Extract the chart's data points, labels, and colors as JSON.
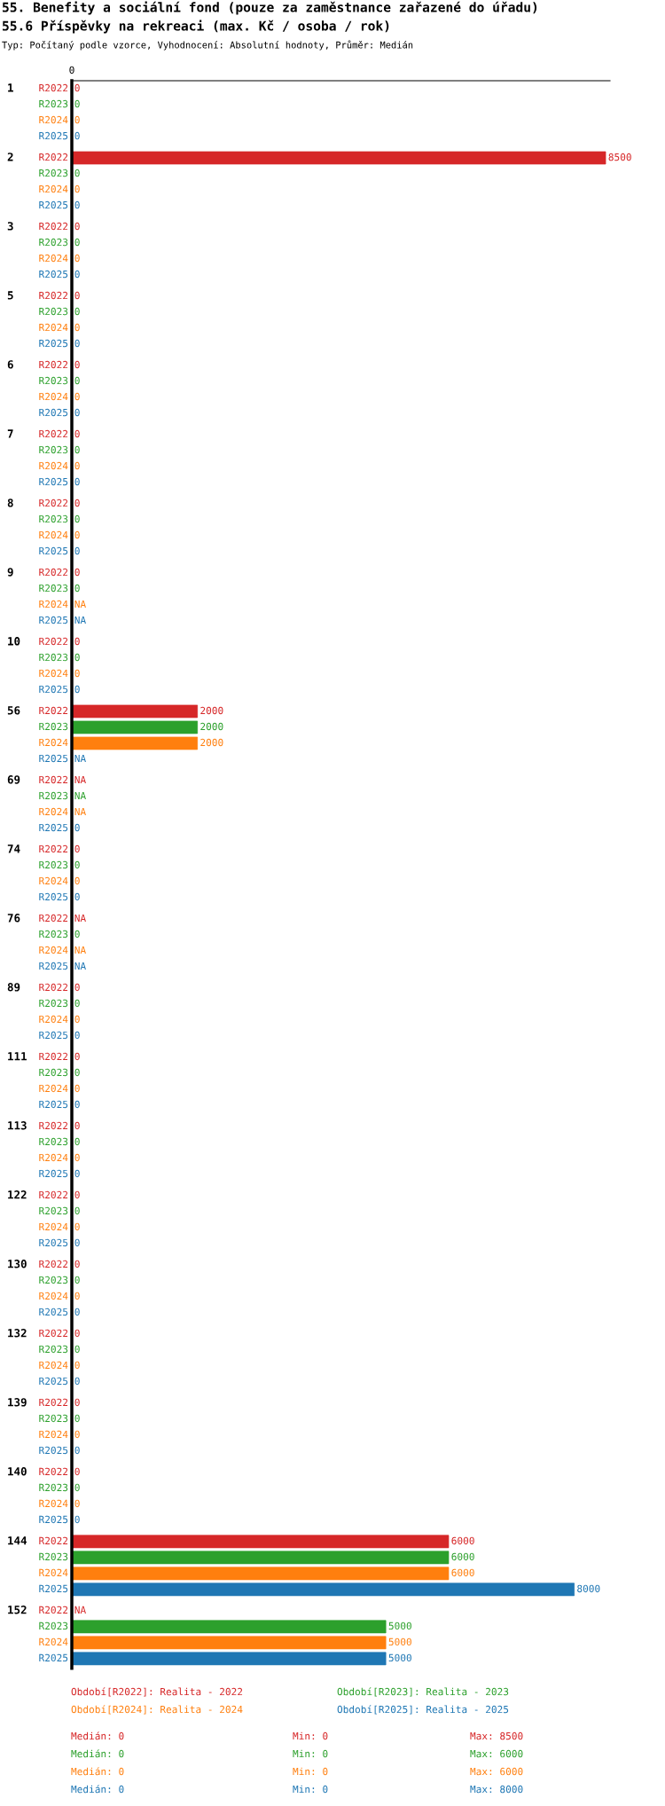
{
  "chart_data": {
    "type": "bar",
    "orientation": "horizontal",
    "title": "55. Benefity a sociální fond (pouze za zaměstnance zařazené do úřadu)",
    "subtitle": "55.6 Příspěvky na rekreaci (max. Kč / osoba / rok)",
    "categories": [
      "1",
      "2",
      "3",
      "5",
      "6",
      "7",
      "8",
      "9",
      "10",
      "56",
      "69",
      "74",
      "76",
      "89",
      "111",
      "113",
      "122",
      "130",
      "132",
      "139",
      "140",
      "144",
      "152"
    ],
    "series": [
      {
        "name": "R2022",
        "color": "#d62728",
        "values": [
          0,
          8500,
          0,
          0,
          0,
          0,
          0,
          0,
          0,
          2000,
          null,
          0,
          null,
          0,
          0,
          0,
          0,
          0,
          0,
          0,
          0,
          6000,
          null
        ],
        "value_labels": [
          "0",
          "8500",
          "0",
          "0",
          "0",
          "0",
          "0",
          "0",
          "0",
          "2000",
          "NA",
          "0",
          "NA",
          "0",
          "0",
          "0",
          "0",
          "0",
          "0",
          "0",
          "0",
          "6000",
          "NA"
        ]
      },
      {
        "name": "R2023",
        "color": "#2ca02c",
        "values": [
          0,
          0,
          0,
          0,
          0,
          0,
          0,
          0,
          0,
          2000,
          null,
          0,
          0,
          0,
          0,
          0,
          0,
          0,
          0,
          0,
          0,
          6000,
          5000
        ],
        "value_labels": [
          "0",
          "0",
          "0",
          "0",
          "0",
          "0",
          "0",
          "0",
          "0",
          "2000",
          "NA",
          "0",
          "0",
          "0",
          "0",
          "0",
          "0",
          "0",
          "0",
          "0",
          "0",
          "6000",
          "5000"
        ]
      },
      {
        "name": "R2024",
        "color": "#ff7f0e",
        "values": [
          0,
          0,
          0,
          0,
          0,
          0,
          0,
          null,
          0,
          2000,
          null,
          0,
          null,
          0,
          0,
          0,
          0,
          0,
          0,
          0,
          0,
          6000,
          5000
        ],
        "value_labels": [
          "0",
          "0",
          "0",
          "0",
          "0",
          "0",
          "0",
          "NA",
          "0",
          "2000",
          "NA",
          "0",
          "NA",
          "0",
          "0",
          "0",
          "0",
          "0",
          "0",
          "0",
          "0",
          "6000",
          "5000"
        ]
      },
      {
        "name": "R2025",
        "color": "#1f77b4",
        "values": [
          0,
          0,
          0,
          0,
          0,
          0,
          0,
          null,
          0,
          null,
          0,
          0,
          null,
          0,
          0,
          0,
          0,
          0,
          0,
          0,
          0,
          8000,
          5000
        ],
        "value_labels": [
          "0",
          "0",
          "0",
          "0",
          "0",
          "0",
          "0",
          "NA",
          "0",
          "NA",
          "0",
          "0",
          "NA",
          "0",
          "0",
          "0",
          "0",
          "0",
          "0",
          "0",
          "0",
          "8000",
          "5000"
        ]
      }
    ],
    "xlim": [
      0,
      8570
    ],
    "legend": false,
    "annotations": [
      "0",
      "Typ: Počítaný podle vzorce, Vyhodnocení: Absolutní hodnoty, Průměr: Medián",
      "Období[R2022]: Realita - 2022",
      "Období[R2023]: Realita - 2023",
      "Období[R2024]: Realita - 2024",
      "Období[R2025]: Realita - 2025",
      "Medián: 0",
      "Min: 0",
      "Max: 8500",
      "Medián: 0",
      "Min: 0",
      "Max: 6000",
      "Medián: 0",
      "Min: 0",
      "Max: 6000",
      "Medián: 0",
      "Min: 0",
      "Max: 8000"
    ]
  }
}
